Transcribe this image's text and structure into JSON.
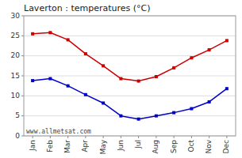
{
  "chart_data": {
    "type": "line",
    "title": "Laverton : temperatures (°C)",
    "categories": [
      "Jan",
      "Feb",
      "Mar",
      "Apr",
      "May",
      "Jun",
      "Jul",
      "Aug",
      "Sep",
      "Oct",
      "Nov",
      "Dec"
    ],
    "series": [
      {
        "color": "#cc0000",
        "marker": "square",
        "values": [
          25.5,
          25.8,
          24.0,
          20.5,
          17.5,
          14.3,
          13.7,
          14.8,
          17.0,
          19.5,
          21.5,
          23.8
        ]
      },
      {
        "color": "#0000cc",
        "marker": "square",
        "values": [
          13.8,
          14.3,
          12.5,
          10.3,
          8.2,
          5.0,
          4.2,
          5.0,
          5.8,
          6.8,
          8.5,
          11.8
        ]
      }
    ],
    "ylim": [
      0,
      30
    ],
    "yticks": [
      0,
      5,
      10,
      15,
      20,
      25,
      30
    ],
    "grid": true,
    "annotations": [
      "www.allmetsat.com"
    ]
  }
}
